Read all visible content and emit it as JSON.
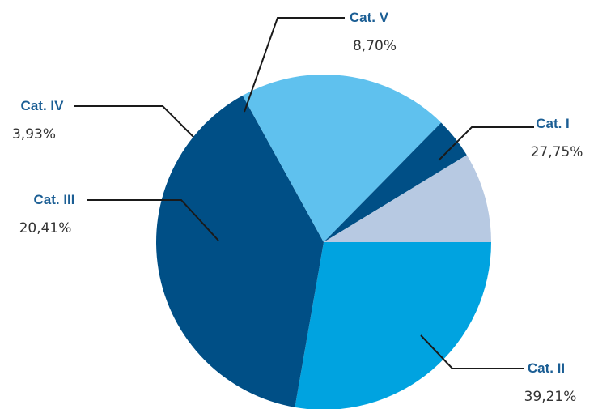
{
  "chart_data": {
    "type": "pie",
    "title": "",
    "start_angle_deg": 0,
    "direction": "clockwise",
    "slices": [
      {
        "label": "Cat. I",
        "value": 27.75,
        "value_text": "27,75%",
        "color": "#00A3E0"
      },
      {
        "label": "Cat. II",
        "value": 39.21,
        "value_text": "39,21%",
        "color": "#004F86"
      },
      {
        "label": "Cat. III",
        "value": 20.41,
        "value_text": "20,41%",
        "color": "#5FC1EE"
      },
      {
        "label": "Cat. IV",
        "value": 3.93,
        "value_text": "3,93%",
        "color": "#004F86"
      },
      {
        "label": "Cat. V",
        "value": 8.7,
        "value_text": "8,70%",
        "color": "#B7C9E2"
      }
    ],
    "label_color": "#1B5E94",
    "value_color": "#333333"
  }
}
